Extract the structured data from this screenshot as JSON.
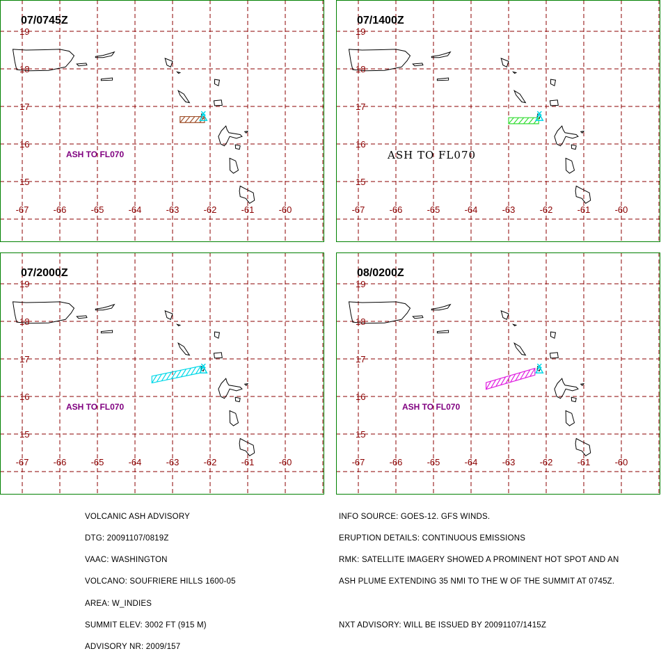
{
  "colors": {
    "frame": "#008000",
    "grid": "#8b0000",
    "land": "#000000",
    "vent": "#00d8e8",
    "label": "#800080"
  },
  "panels": [
    {
      "time": "07/0745Z",
      "ash_label": "ASH TO FL070",
      "plume_color": "#a0522d",
      "plume": {
        "from_lon": -62.8,
        "to_lon": -62.15,
        "lat": 16.65,
        "half_width": 0.08
      }
    },
    {
      "time": "07/1400Z",
      "ash_label": "ASH TO FL070",
      "plume_color": "#33dd33",
      "plume": {
        "from_lon": -63.0,
        "to_lon": -62.2,
        "lat": 16.62,
        "half_width": 0.08
      }
    },
    {
      "time": "07/2000Z",
      "ash_label": "ASH TO FL070",
      "plume_color": "#00d8e8",
      "plume": {
        "from_lon": -63.55,
        "to_lon": -62.25,
        "lat_west": 16.45,
        "lat_east": 16.72,
        "half_width": 0.09
      }
    },
    {
      "time": "08/0200Z",
      "ash_label": "ASH TO FL070",
      "plume_color": "#e020e0",
      "plume": {
        "from_lon": -63.6,
        "to_lon": -62.3,
        "lat_west": 16.28,
        "lat_east": 16.66,
        "half_width": 0.09
      }
    }
  ],
  "lon_labels": [
    "-67",
    "-66",
    "-65",
    "-64",
    "-63",
    "-62",
    "-61",
    "-60"
  ],
  "lat_labels": [
    "19",
    "18",
    "17",
    "16",
    "15"
  ],
  "volcano": {
    "lon": -62.18,
    "lat": 16.72
  },
  "advisory_left": [
    "VOLCANIC ASH ADVISORY",
    "DTG: 20091107/0819Z",
    "VAAC: WASHINGTON",
    "VOLCANO: SOUFRIERE HILLS 1600-05",
    "AREA: W_INDIES",
    "SUMMIT ELEV: 3002 FT (915 M)",
    "ADVISORY NR: 2009/157"
  ],
  "advisory_right": [
    "INFO SOURCE: GOES-12. GFS WINDS.",
    "ERUPTION DETAILS: CONTINUOUS EMISSIONS",
    "RMK: SATELLITE IMAGERY SHOWED A PROMINENT HOT SPOT AND AN",
    "ASH PLUME EXTENDING 35 NMI TO THE W OF THE SUMMIT AT 0745Z.",
    "",
    "NXT ADVISORY: WILL BE ISSUED BY 20091107/1415Z"
  ]
}
